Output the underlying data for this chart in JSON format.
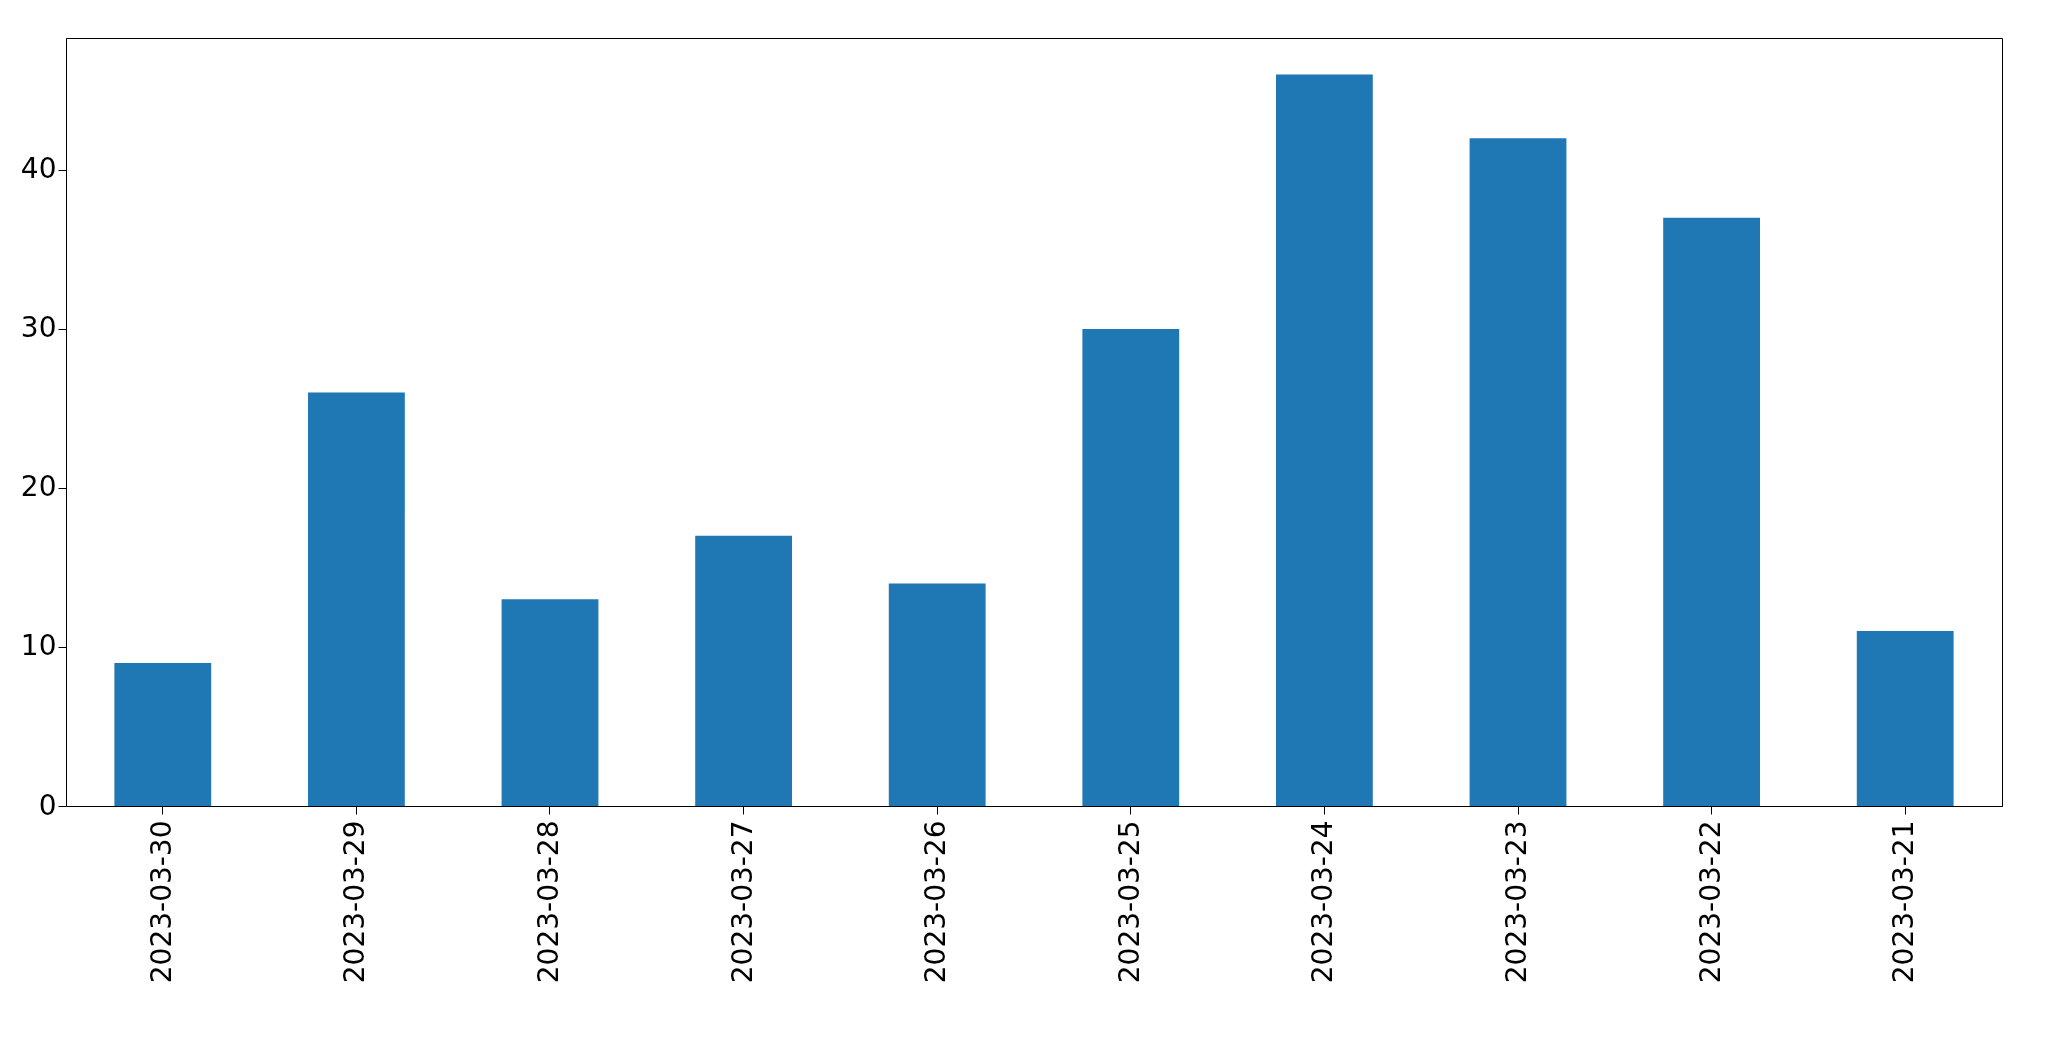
{
  "chart_data": {
    "type": "bar",
    "categories": [
      "2023-03-30",
      "2023-03-29",
      "2023-03-28",
      "2023-03-27",
      "2023-03-26",
      "2023-03-25",
      "2023-03-24",
      "2023-03-23",
      "2023-03-22",
      "2023-03-21"
    ],
    "values": [
      9,
      26,
      13,
      17,
      14,
      30,
      46,
      42,
      37,
      11
    ],
    "color": "#1f77b4",
    "ylim": [
      0,
      48.3
    ],
    "yticks": [
      0,
      10,
      20,
      30,
      40
    ],
    "grid": false
  }
}
